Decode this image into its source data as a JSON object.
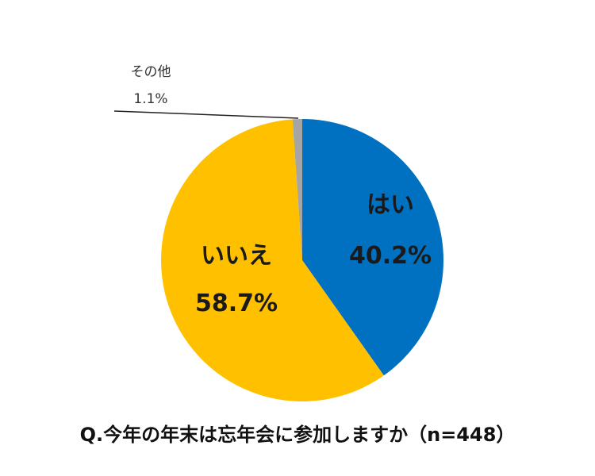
{
  "chart_data": {
    "type": "pie",
    "title": "Q.今年の年末は忘年会に参加しますか（n=448）",
    "slices": [
      {
        "label": "はい",
        "value": 40.2,
        "value_label": "40.2%",
        "color": "#0070C0"
      },
      {
        "label": "いいえ",
        "value": 58.7,
        "value_label": "58.7%",
        "color": "#FFC000"
      },
      {
        "label": "その他",
        "value": 1.1,
        "value_label": "1.1%",
        "color": "#A5A5A5"
      }
    ],
    "start_angle": "12 o'clock",
    "direction": "clockwise"
  }
}
